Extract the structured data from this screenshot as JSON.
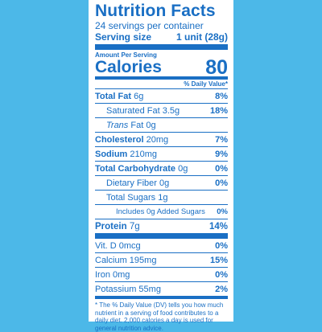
{
  "label": {
    "title": "Nutrition Facts",
    "servings": "24 servings per container",
    "serving_size_label": "Serving size",
    "serving_size_value": "1 unit (28g)",
    "amount_per_serving": "Amount Per Serving",
    "calories_label": "Calories",
    "calories_value": "80",
    "dv_header": "% Daily Value*",
    "rows": [
      {
        "label": "Total Fat",
        "amount": "6g",
        "pct": "8%"
      },
      {
        "label": "Saturated Fat",
        "amount": "3.5g",
        "pct": "18%"
      },
      {
        "label": "Trans",
        "amount": "Fat 0g",
        "pct": ""
      },
      {
        "label": "Cholesterol",
        "amount": "20mg",
        "pct": "7%"
      },
      {
        "label": "Sodium",
        "amount": "210mg",
        "pct": "9%"
      },
      {
        "label": "Total Carbohydrate",
        "amount": "0g",
        "pct": "0%"
      },
      {
        "label": "Dietary Fiber",
        "amount": "0g",
        "pct": "0%"
      },
      {
        "label": "Total Sugars",
        "amount": "1g",
        "pct": ""
      },
      {
        "label": "Includes 0g Added Sugars",
        "amount": "",
        "pct": "0%"
      },
      {
        "label": "Protein",
        "amount": "7g",
        "pct": "14%"
      }
    ],
    "vitamins": [
      {
        "label": "Vit. D",
        "amount": "0mcg",
        "pct": "0%"
      },
      {
        "label": "Calcium",
        "amount": "195mg",
        "pct": "15%"
      },
      {
        "label": "Iron",
        "amount": "0mg",
        "pct": "0%"
      },
      {
        "label": "Potassium",
        "amount": "55mg",
        "pct": "2%"
      }
    ],
    "footnote": "* The % Daily Value (DV) tells you how much nutrient in a serving of food contributes to a daily diet. 2,000 calories a day is used for general nutrition advice."
  },
  "colors": {
    "background": "#4cb8e8",
    "ink": "#1a6fc4",
    "panel": "#ffffff"
  }
}
